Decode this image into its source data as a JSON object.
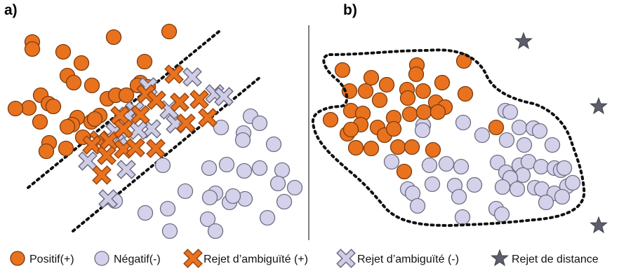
{
  "panels": {
    "a": "a)",
    "b": "b)"
  },
  "legend": {
    "positive": "Positif(+)",
    "negative": "Négatif(-)",
    "reject_ambiguity_pos": "Rejet d’ambiguïté (+)",
    "reject_ambiguity_neg": "Rejet d’ambiguïté (-)",
    "reject_distance": "Rejet de distance"
  },
  "colors": {
    "positive": "#e9721f",
    "negative": "#d4d2ea",
    "reject_pos": "#e9721f",
    "reject_neg": "#cfcde6",
    "star": "#5c5f6b"
  }
}
